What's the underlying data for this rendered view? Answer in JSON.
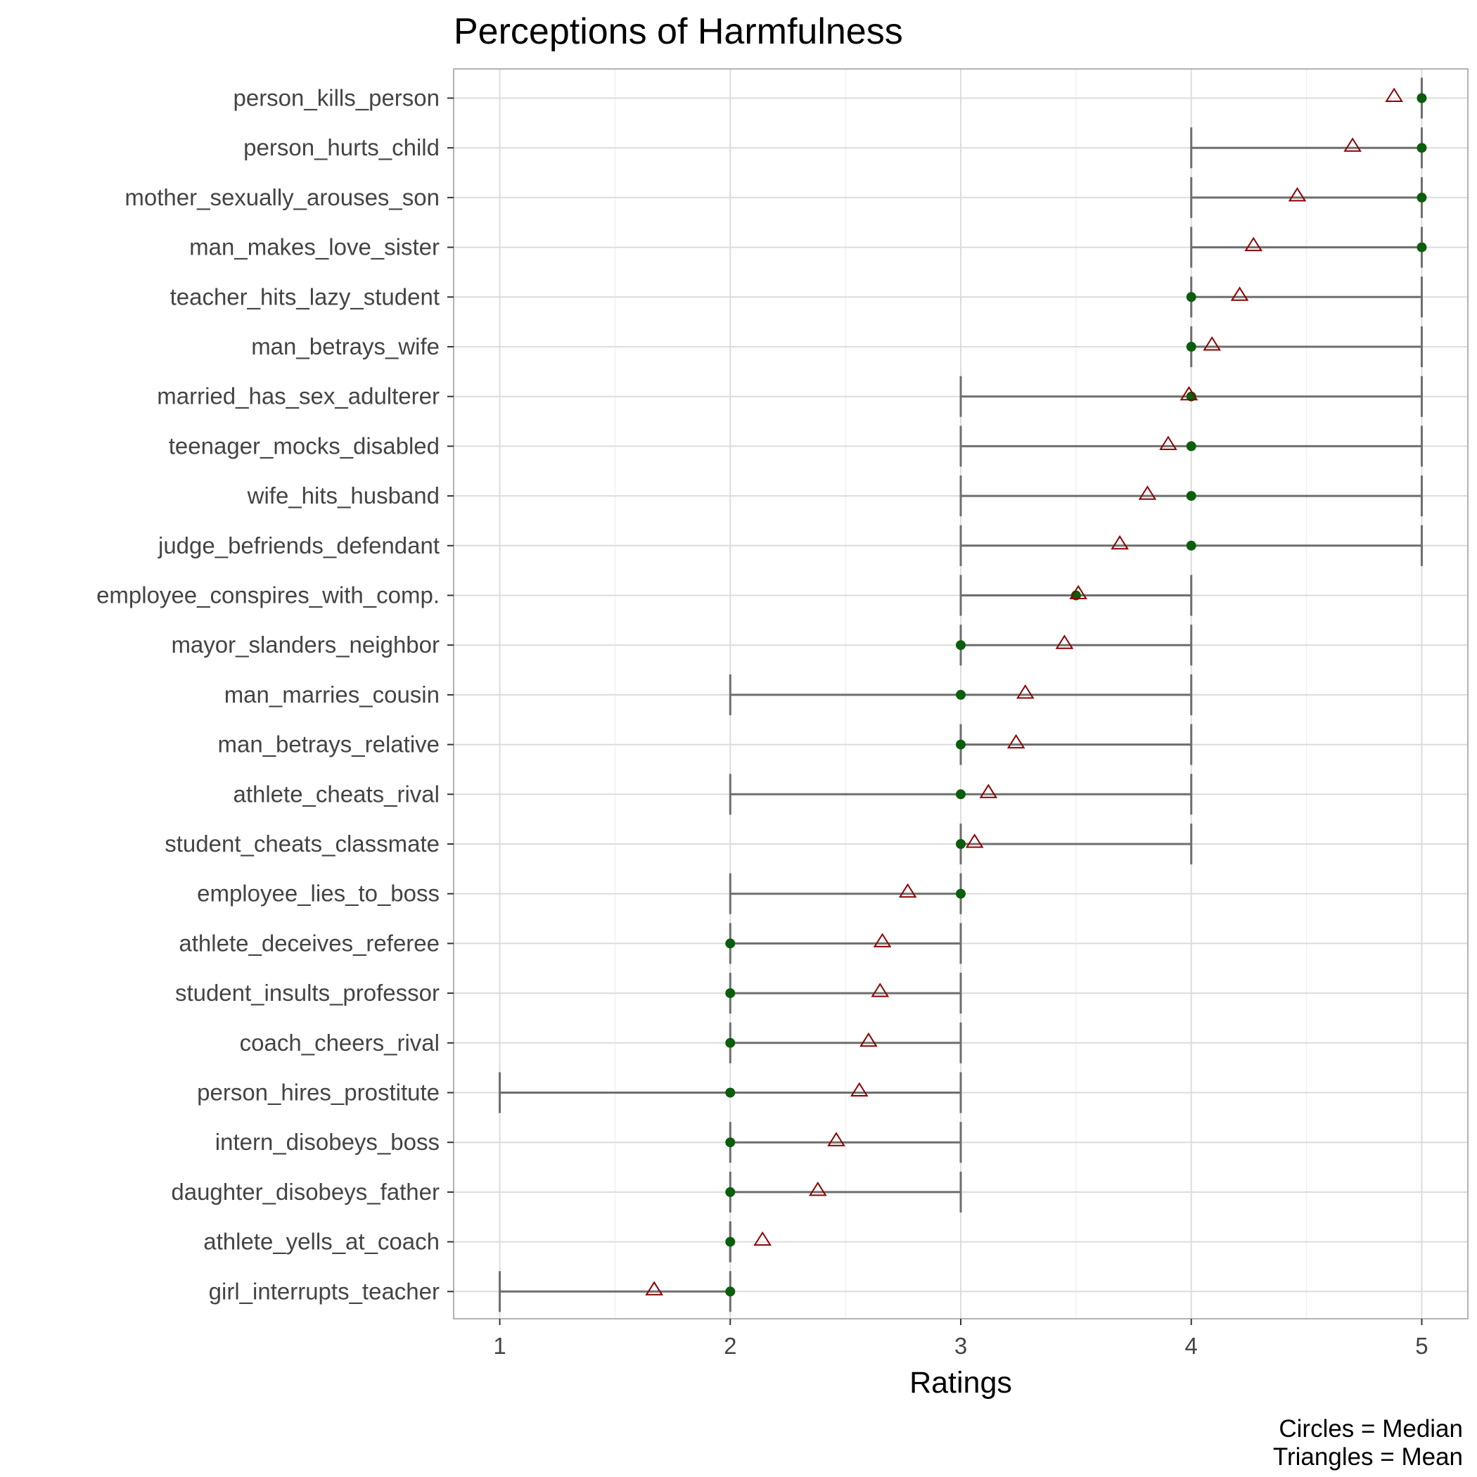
{
  "chart_data": {
    "type": "scatter",
    "title": "Perceptions of Harmfulness",
    "xlabel": "Ratings",
    "ylabel": "",
    "xlim": [
      0.8,
      5.2
    ],
    "x_ticks": [
      1,
      2,
      3,
      4,
      5
    ],
    "grid": true,
    "caption": [
      "Circles = Median",
      "Triangles = Mean"
    ],
    "colors": {
      "median": "#0b5e0b",
      "mean": "#8b0000",
      "range": "#6e6e6e",
      "grid": "#dcdcdc",
      "panel_border": "#b3b3b3"
    },
    "items": [
      {
        "label": "person_kills_person",
        "low": 5,
        "high": 5,
        "median": 5,
        "mean": 4.88
      },
      {
        "label": "person_hurts_child",
        "low": 4,
        "high": 5,
        "median": 5,
        "mean": 4.7
      },
      {
        "label": "mother_sexually_arouses_son",
        "low": 4,
        "high": 5,
        "median": 5,
        "mean": 4.46
      },
      {
        "label": "man_makes_love_sister",
        "low": 4,
        "high": 5,
        "median": 5,
        "mean": 4.27
      },
      {
        "label": "teacher_hits_lazy_student",
        "low": 4,
        "high": 5,
        "median": 4,
        "mean": 4.21
      },
      {
        "label": "man_betrays_wife",
        "low": 4,
        "high": 5,
        "median": 4,
        "mean": 4.09
      },
      {
        "label": "married_has_sex_adulterer",
        "low": 3,
        "high": 5,
        "median": 4,
        "mean": 3.99
      },
      {
        "label": "teenager_mocks_disabled",
        "low": 3,
        "high": 5,
        "median": 4,
        "mean": 3.9
      },
      {
        "label": "wife_hits_husband",
        "low": 3,
        "high": 5,
        "median": 4,
        "mean": 3.81
      },
      {
        "label": "judge_befriends_defendant",
        "low": 3,
        "high": 5,
        "median": 4,
        "mean": 3.69
      },
      {
        "label": "employee_conspires_with_comp.",
        "low": 3,
        "high": 4,
        "median": 3.5,
        "mean": 3.51
      },
      {
        "label": "mayor_slanders_neighbor",
        "low": 3,
        "high": 4,
        "median": 3,
        "mean": 3.45
      },
      {
        "label": "man_marries_cousin",
        "low": 2,
        "high": 4,
        "median": 3,
        "mean": 3.28
      },
      {
        "label": "man_betrays_relative",
        "low": 3,
        "high": 4,
        "median": 3,
        "mean": 3.24
      },
      {
        "label": "athlete_cheats_rival",
        "low": 2,
        "high": 4,
        "median": 3,
        "mean": 3.12
      },
      {
        "label": "student_cheats_classmate",
        "low": 3,
        "high": 4,
        "median": 3,
        "mean": 3.06
      },
      {
        "label": "employee_lies_to_boss",
        "low": 2,
        "high": 3,
        "median": 3,
        "mean": 2.77
      },
      {
        "label": "athlete_deceives_referee",
        "low": 2,
        "high": 3,
        "median": 2,
        "mean": 2.66
      },
      {
        "label": "student_insults_professor",
        "low": 2,
        "high": 3,
        "median": 2,
        "mean": 2.65
      },
      {
        "label": "coach_cheers_rival",
        "low": 2,
        "high": 3,
        "median": 2,
        "mean": 2.6
      },
      {
        "label": "person_hires_prostitute",
        "low": 1,
        "high": 3,
        "median": 2,
        "mean": 2.56
      },
      {
        "label": "intern_disobeys_boss",
        "low": 2,
        "high": 3,
        "median": 2,
        "mean": 2.46
      },
      {
        "label": "daughter_disobeys_father",
        "low": 2,
        "high": 3,
        "median": 2,
        "mean": 2.38
      },
      {
        "label": "athlete_yells_at_coach",
        "low": 2,
        "high": 2,
        "median": 2,
        "mean": 2.14
      },
      {
        "label": "girl_interrupts_teacher",
        "low": 1,
        "high": 2,
        "median": 2,
        "mean": 1.67
      }
    ]
  }
}
